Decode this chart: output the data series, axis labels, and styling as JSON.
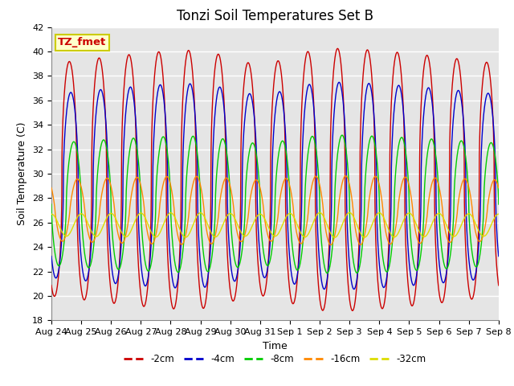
{
  "title": "Tonzi Soil Temperatures Set B",
  "xlabel": "Time",
  "ylabel": "Soil Temperature (C)",
  "ylim": [
    18,
    42
  ],
  "yticks": [
    18,
    20,
    22,
    24,
    26,
    28,
    30,
    32,
    34,
    36,
    38,
    40,
    42
  ],
  "background_color": "#e5e5e5",
  "legend_label": "TZ_fmet",
  "legend_box_color": "#ffffcc",
  "legend_box_edge": "#cccc00",
  "series": [
    {
      "label": "-2cm",
      "color": "#cc0000"
    },
    {
      "label": "-4cm",
      "color": "#0000cc"
    },
    {
      "label": "-8cm",
      "color": "#00cc00"
    },
    {
      "label": "-16cm",
      "color": "#ff8800"
    },
    {
      "label": "-32cm",
      "color": "#dddd00"
    }
  ],
  "x_tick_labels": [
    "Aug 24",
    "Aug 25",
    "Aug 26",
    "Aug 27",
    "Aug 28",
    "Aug 29",
    "Aug 30",
    "Aug 31",
    "Sep 1",
    "Sep 2",
    "Sep 3",
    "Sep 4",
    "Sep 5",
    "Sep 6",
    "Sep 7",
    "Sep 8"
  ],
  "num_days": 15,
  "title_fontsize": 12,
  "axis_label_fontsize": 9,
  "tick_fontsize": 8
}
